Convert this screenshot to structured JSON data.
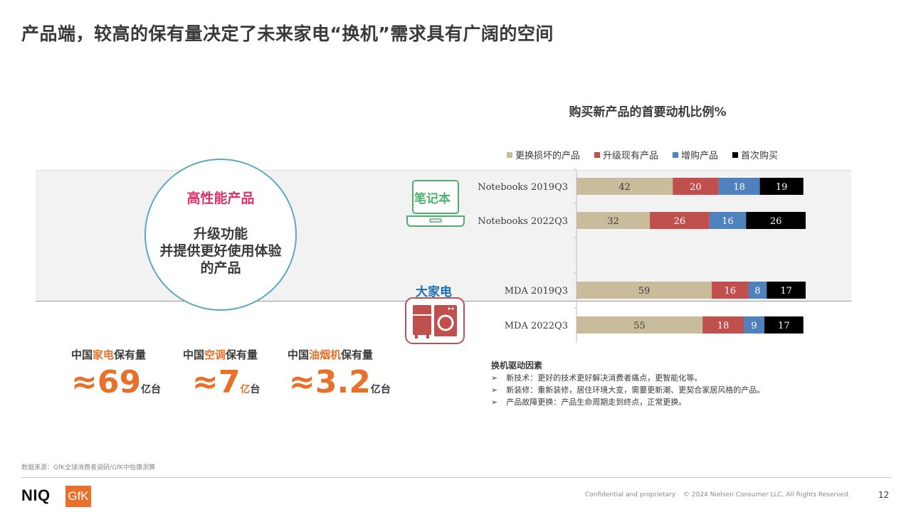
{
  "title": "产品端，较高的保有量决定了未来家电“换机”需求具有广阔的空间",
  "circle": {
    "title": "高性能产品",
    "lines": [
      "升级功能",
      "并提供更好使用体验",
      "的产品"
    ]
  },
  "stats": [
    {
      "prefix": "中国",
      "highlight": "家电",
      "suffix": "保有量",
      "approx": "≈",
      "value": "69",
      "unit_highlight": "",
      "unit": "亿台"
    },
    {
      "prefix": "中国",
      "highlight": "空调",
      "suffix": "保有量",
      "approx": "≈",
      "value": "7",
      "unit_highlight": "亿",
      "unit": "台"
    },
    {
      "prefix": "中国",
      "highlight": "油烟机",
      "suffix": "保有量",
      "approx": "≈",
      "value": "3.2",
      "unit_highlight": "",
      "unit": "亿台"
    }
  ],
  "categories": {
    "notebook": "笔记本",
    "mda": "大家电"
  },
  "colors": {
    "replace": "#c9bc9c",
    "upgrade": "#c0504d",
    "add": "#4f81bd",
    "first": "#000000",
    "accent_orange": "#e8702a",
    "accent_pink": "#d6336c",
    "circle_border": "#5aa9bd"
  },
  "chart_data": {
    "type": "bar",
    "orientation": "horizontal",
    "stacked": true,
    "title": "购买新产品的首要动机比例%",
    "categories": [
      "Notebooks 2019Q3",
      "Notebooks 2022Q3",
      "",
      "MDA 2019Q3",
      "MDA 2022Q3"
    ],
    "series": [
      {
        "name": "更换损坏的产品",
        "values": [
          42,
          32,
          null,
          59,
          55
        ]
      },
      {
        "name": "升级现有产品",
        "values": [
          20,
          26,
          null,
          16,
          18
        ]
      },
      {
        "name": "增购产品",
        "values": [
          18,
          16,
          null,
          8,
          9
        ]
      },
      {
        "name": "首次购买",
        "values": [
          19,
          26,
          null,
          17,
          17
        ]
      }
    ],
    "legend_position": "top",
    "grid": false
  },
  "drivers": {
    "title": "换机驱动因素",
    "bullet": "➢",
    "items": [
      "新技术：更好的技术更好解决消费者痛点，更智能化等。",
      "新装修：重新装修，居住环境大变，需要更新潮、更契合家居风格的产品。",
      "产品故障更换：产品生命周期走到终点，正常更换。"
    ]
  },
  "footer": {
    "source": "数据来源：GfK全球消费者调研/GfK中怡康测算",
    "niq": "NIQ",
    "gfk": "GfK",
    "confidential": "Confidential and proprietary",
    "copyright": "© 2024 Nielsen Consumer LLC. All Rights Reserved.",
    "page": "12"
  }
}
